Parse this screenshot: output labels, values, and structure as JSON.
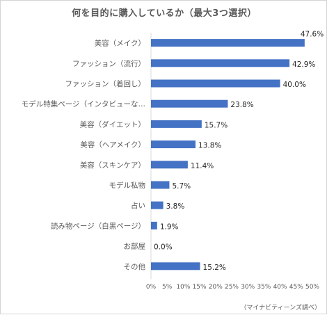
{
  "chart_data": {
    "type": "bar",
    "orientation": "horizontal",
    "title": "何を目的に購入しているか（最大3つ選択）",
    "categories": [
      "美容（メイク）",
      "ファッション（流行）",
      "ファッション（着回し）",
      "モデル特集ページ（インタビューな…",
      "美容（ダイエット）",
      "美容（ヘアメイク）",
      "美容（スキンケア）",
      "モデル私物",
      "占い",
      "読み物ページ（白黒ページ）",
      "お部屋",
      "その他"
    ],
    "values": [
      47.6,
      42.9,
      40.0,
      23.8,
      15.7,
      13.8,
      11.4,
      5.7,
      3.8,
      1.9,
      0.0,
      15.2
    ],
    "value_labels": [
      "47.6%",
      "42.9%",
      "40.0%",
      "23.8%",
      "15.7%",
      "13.8%",
      "11.4%",
      "5.7%",
      "3.8%",
      "1.9%",
      "0.0%",
      "15.2%"
    ],
    "xlim": [
      0,
      50
    ],
    "xticks": [
      0,
      5,
      10,
      15,
      20,
      25,
      30,
      35,
      40,
      45,
      50
    ],
    "xtick_labels": [
      "0%",
      "5%",
      "10%",
      "15%",
      "20%",
      "25%",
      "30%",
      "35%",
      "40%",
      "45%",
      "50%"
    ],
    "grid": false,
    "legend": "none",
    "bar_color": "#4472c4",
    "source": "（マイナビティーンズ調べ）"
  }
}
